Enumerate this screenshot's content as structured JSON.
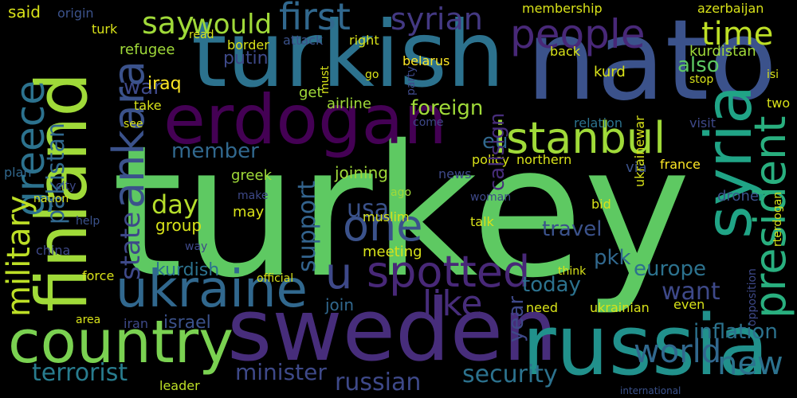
{
  "words": [
    {
      "text": "turkey",
      "color": "#5ec962"
    },
    {
      "text": "nato",
      "color": "#3b528b"
    },
    {
      "text": "turkish",
      "color": "#2c728e"
    },
    {
      "text": "erdogan",
      "color": "#440154"
    },
    {
      "text": "sweden",
      "color": "#472d7b"
    },
    {
      "text": "russia",
      "color": "#21918c"
    },
    {
      "text": "country",
      "color": "#7ad151"
    },
    {
      "text": "ukraine",
      "color": "#31688e"
    },
    {
      "text": "finland",
      "color": "#a0da39"
    },
    {
      "text": "syria",
      "color": "#20a486"
    },
    {
      "text": "president",
      "color": "#29af7f"
    },
    {
      "text": "ankara",
      "color": "#3b528b"
    },
    {
      "text": "greece",
      "color": "#2c728e"
    },
    {
      "text": "military",
      "color": "#bddf26"
    },
    {
      "text": "pakistan",
      "color": "#31688e"
    },
    {
      "text": "state",
      "color": "#3e4989"
    },
    {
      "text": "people",
      "color": "#482878"
    },
    {
      "text": "first",
      "color": "#31688e"
    },
    {
      "text": "syrian",
      "color": "#443983"
    },
    {
      "text": "time",
      "color": "#bddf26"
    },
    {
      "text": "say",
      "color": "#a0da39"
    },
    {
      "text": "would",
      "color": "#a0da39"
    },
    {
      "text": "istanbul",
      "color": "#a0da39"
    },
    {
      "text": "spotted",
      "color": "#482878"
    },
    {
      "text": "one",
      "color": "#3b528b"
    },
    {
      "text": "u",
      "color": "#3e4989"
    },
    {
      "text": "like",
      "color": "#472d7b"
    },
    {
      "text": "world",
      "color": "#31688e"
    },
    {
      "text": "new",
      "color": "#2c728e"
    },
    {
      "text": "security",
      "color": "#2c728e"
    },
    {
      "text": "russian",
      "color": "#3e4989"
    },
    {
      "text": "minister",
      "color": "#3e4989"
    },
    {
      "text": "terrorist",
      "color": "#287c8e"
    },
    {
      "text": "leader",
      "color": "#bddf26"
    },
    {
      "text": "israel",
      "color": "#3b528b"
    },
    {
      "text": "kurdish",
      "color": "#2c728e"
    },
    {
      "text": "day",
      "color": "#b5de2b"
    },
    {
      "text": "group",
      "color": "#d8e219"
    },
    {
      "text": "member",
      "color": "#31688e"
    },
    {
      "text": "war",
      "color": "#3e4989"
    },
    {
      "text": "iraq",
      "color": "#fde725"
    },
    {
      "text": "putin",
      "color": "#3e4989"
    },
    {
      "text": "support",
      "color": "#33638d"
    },
    {
      "text": "usa",
      "color": "#3b528b"
    },
    {
      "text": "eu",
      "color": "#31688e"
    },
    {
      "text": "foreign",
      "color": "#a0da39"
    },
    {
      "text": "also",
      "color": "#5ec962"
    },
    {
      "text": "want",
      "color": "#3e4989"
    },
    {
      "text": "europe",
      "color": "#2c728e"
    },
    {
      "text": "today",
      "color": "#2c728e"
    },
    {
      "text": "travel",
      "color": "#3b528b"
    },
    {
      "text": "pkk",
      "color": "#31688e"
    },
    {
      "text": "inflation",
      "color": "#2c728e"
    },
    {
      "text": "kurd",
      "color": "#d8e219"
    },
    {
      "text": "kurdistan",
      "color": "#a0da39"
    },
    {
      "text": "azerbaijan",
      "color": "#d8e219"
    },
    {
      "text": "membership",
      "color": "#d8e219"
    },
    {
      "text": "back",
      "color": "#d8e219"
    },
    {
      "text": "said",
      "color": "#d8e219"
    },
    {
      "text": "origin",
      "color": "#3b528b"
    },
    {
      "text": "refugee",
      "color": "#a0da39"
    },
    {
      "text": "turk",
      "color": "#d8e219"
    },
    {
      "text": "border",
      "color": "#d8e219"
    },
    {
      "text": "read",
      "color": "#d8e219"
    },
    {
      "text": "right",
      "color": "#d8e219"
    },
    {
      "text": "attack",
      "color": "#3b528b"
    },
    {
      "text": "belarus",
      "color": "#fde725"
    },
    {
      "text": "get",
      "color": "#a0da39"
    },
    {
      "text": "airline",
      "color": "#a0da39"
    },
    {
      "text": "relation",
      "color": "#2c728e"
    },
    {
      "text": "visit",
      "color": "#3e4989"
    },
    {
      "text": "two",
      "color": "#d8e219"
    },
    {
      "text": "isi",
      "color": "#d8e219"
    },
    {
      "text": "stop",
      "color": "#d8e219"
    },
    {
      "text": "via",
      "color": "#3b528b"
    },
    {
      "text": "france",
      "color": "#fde725"
    },
    {
      "text": "drone",
      "color": "#3b528b"
    },
    {
      "text": "news",
      "color": "#3e4989"
    },
    {
      "text": "policy",
      "color": "#d8e219"
    },
    {
      "text": "northern",
      "color": "#d8e219"
    },
    {
      "text": "joining",
      "color": "#a0da39"
    },
    {
      "text": "ago",
      "color": "#a0da39"
    },
    {
      "text": "greek",
      "color": "#a0da39"
    },
    {
      "text": "make",
      "color": "#3e4989"
    },
    {
      "text": "may",
      "color": "#d8e219"
    },
    {
      "text": "muslim",
      "color": "#d8e219"
    },
    {
      "text": "meeting",
      "color": "#d8e219"
    },
    {
      "text": "join",
      "color": "#31688e"
    },
    {
      "text": "talk",
      "color": "#d8e219"
    },
    {
      "text": "woman",
      "color": "#3e4989"
    },
    {
      "text": "bid",
      "color": "#d8e219"
    },
    {
      "text": "need",
      "color": "#d8e219"
    },
    {
      "text": "ukrainian",
      "color": "#d8e219"
    },
    {
      "text": "even",
      "color": "#d8e219"
    },
    {
      "text": "force",
      "color": "#d8e219"
    },
    {
      "text": "iran",
      "color": "#3e4989"
    },
    {
      "text": "china",
      "color": "#3e4989"
    },
    {
      "text": "help",
      "color": "#3b528b"
    },
    {
      "text": "area",
      "color": "#d8e219"
    },
    {
      "text": "way",
      "color": "#3e4989"
    },
    {
      "text": "nation",
      "color": "#d8e219"
    },
    {
      "text": "plan",
      "color": "#31688e"
    },
    {
      "text": "city",
      "color": "#3e4989"
    },
    {
      "text": "see",
      "color": "#d8e219"
    },
    {
      "text": "take",
      "color": "#d8e219"
    },
    {
      "text": "come",
      "color": "#3e4989"
    },
    {
      "text": "official",
      "color": "#d8e219"
    },
    {
      "text": "year",
      "color": "#3e4989"
    },
    {
      "text": "callsign",
      "color": "#472d7b"
    },
    {
      "text": "ukrainewar",
      "color": "#d8e219"
    },
    {
      "text": "opposition",
      "color": "#3e4989"
    },
    {
      "text": "rterdogan",
      "color": "#d8e219"
    },
    {
      "text": "must",
      "color": "#d8e219"
    },
    {
      "text": "party",
      "color": "#3e4989"
    },
    {
      "text": "go",
      "color": "#d8e219"
    },
    {
      "text": "think",
      "color": "#d8e219"
    },
    {
      "text": "international",
      "color": "#3b528b"
    }
  ]
}
